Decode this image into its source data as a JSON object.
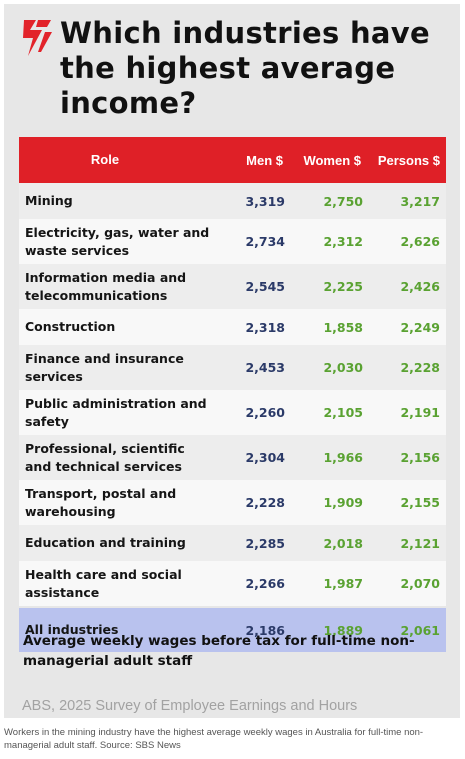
{
  "colors": {
    "header_bg": "#df2027",
    "men_text": "#2b3a68",
    "women_persons_text": "#5aa232",
    "total_row_bg": "#b9c2ee",
    "card_bg": "#e7e7e7"
  },
  "logo": {
    "icon": "sbs-red-swoosh-logo"
  },
  "chart_data": {
    "type": "table",
    "title": "Which industries have the highest average income?",
    "subtitle": "Average weekly wages before tax for full-time non-managerial adult staff",
    "source": "ABS, 2025 Survey of Employee Earnings and Hours",
    "columns": [
      "Role",
      "Men $",
      "Women $",
      "Persons $"
    ],
    "rows": [
      {
        "role": "Mining",
        "men": "3,319",
        "women": "2,750",
        "persons": "3,217"
      },
      {
        "role": "Electricity, gas, water and waste services",
        "men": "2,734",
        "women": "2,312",
        "persons": "2,626"
      },
      {
        "role": "Information media and telecommunications",
        "men": "2,545",
        "women": "2,225",
        "persons": "2,426"
      },
      {
        "role": "Construction",
        "men": "2,318",
        "women": "1,858",
        "persons": "2,249"
      },
      {
        "role": "Finance and insurance services",
        "men": "2,453",
        "women": "2,030",
        "persons": "2,228"
      },
      {
        "role": "Public administration and safety",
        "men": "2,260",
        "women": "2,105",
        "persons": "2,191"
      },
      {
        "role": "Professional, scientific and technical services",
        "men": "2,304",
        "women": "1,966",
        "persons": "2,156"
      },
      {
        "role": "Transport, postal and warehousing",
        "men": "2,228",
        "women": "1,909",
        "persons": "2,155"
      },
      {
        "role": "Education and training",
        "men": "2,285",
        "women": "2,018",
        "persons": "2,121"
      },
      {
        "role": "Health care and social assistance",
        "men": "2,266",
        "women": "1,987",
        "persons": "2,070"
      }
    ],
    "total": {
      "role": "All industries",
      "men": "2,186",
      "women": "1,889",
      "persons": "2,061"
    }
  },
  "caption": "Workers in the mining industry have the highest average weekly wages in Australia for full-time non-managerial adult staff. Source: SBS News"
}
